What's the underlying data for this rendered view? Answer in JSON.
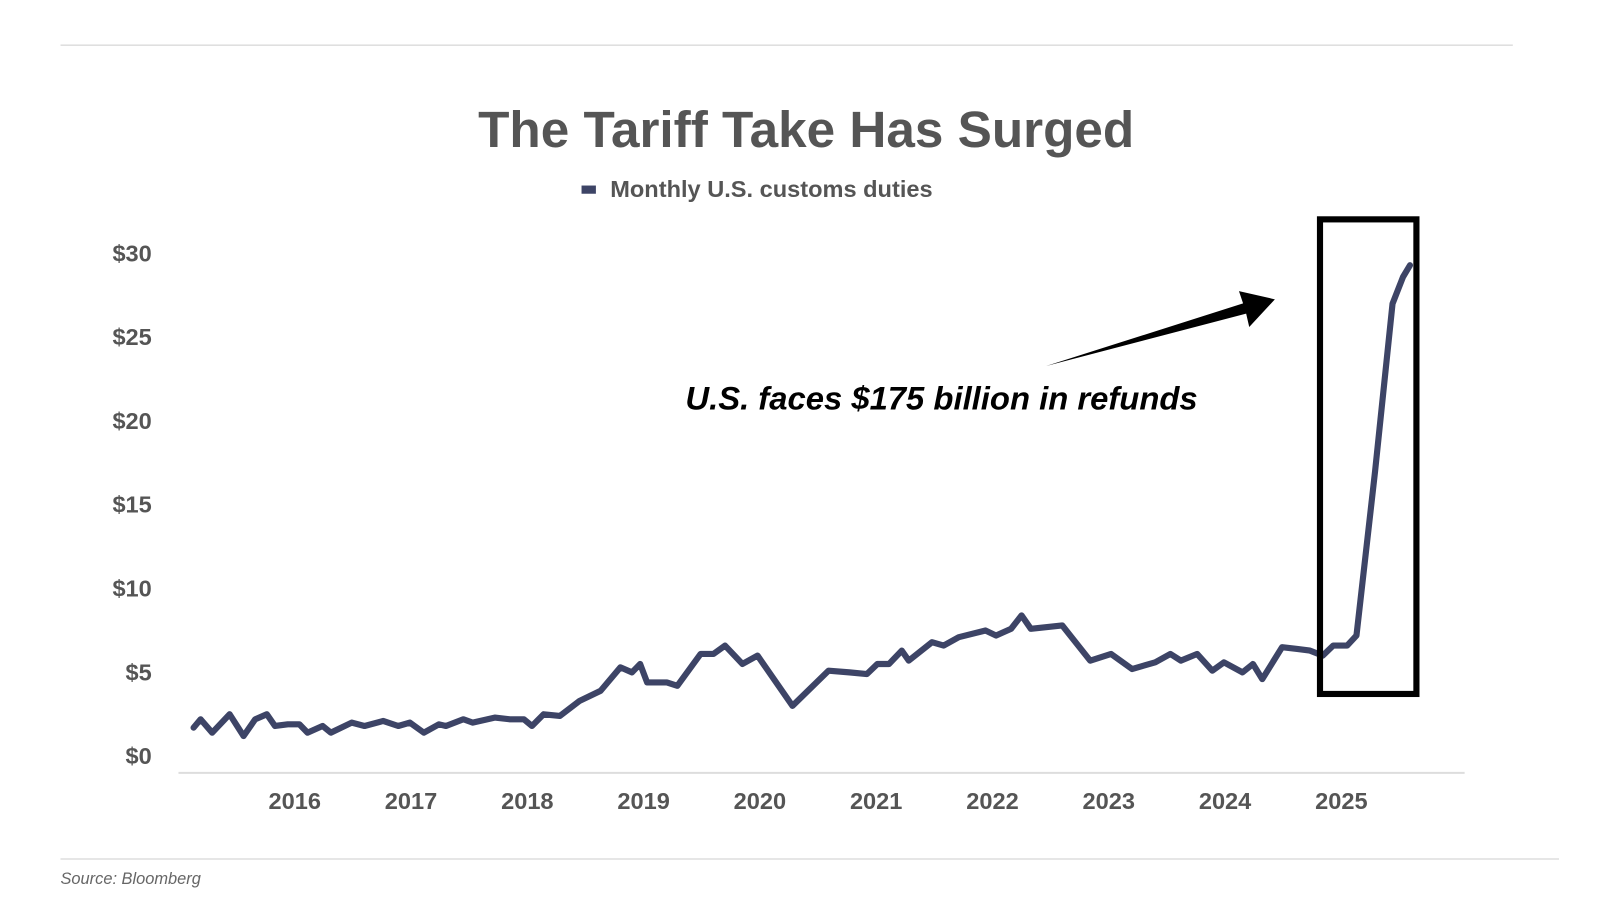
{
  "chart_data": {
    "type": "line",
    "title": "The Tariff Take Has Surged",
    "annotation": "U.S. faces $175 billion in refunds",
    "source": "Source: Bloomberg",
    "xlim": [
      2015,
      2026.06
    ],
    "xticks": [
      2016,
      2017,
      2018,
      2019,
      2020,
      2021,
      2022,
      2023,
      2024,
      2025
    ],
    "ylim": [
      -0.9,
      31.1
    ],
    "yticks": [
      {
        "value": 0,
        "label": "$0"
      },
      {
        "value": 5,
        "label": "$5"
      },
      {
        "value": 10,
        "label": "$10"
      },
      {
        "value": 15,
        "label": "$15"
      },
      {
        "value": 20,
        "label": "$20"
      },
      {
        "value": 25,
        "label": "$25"
      },
      {
        "value": 30,
        "label": "$30"
      }
    ],
    "grid": false,
    "x": [
      2015.13,
      2015.19,
      2015.29,
      2015.44,
      2015.56,
      2015.66,
      2015.76,
      2015.83,
      2015.94,
      2016.04,
      2016.11,
      2016.24,
      2016.31,
      2016.49,
      2016.6,
      2016.76,
      2016.89,
      2016.99,
      2017.11,
      2017.24,
      2017.3,
      2017.45,
      2017.53,
      2017.72,
      2017.85,
      2017.97,
      2018.04,
      2018.14,
      2018.28,
      2018.45,
      2018.63,
      2018.8,
      2018.9,
      2018.97,
      2019.03,
      2019.2,
      2019.29,
      2019.49,
      2019.6,
      2019.7,
      2019.85,
      2019.98,
      2020.28,
      2020.59,
      2020.77,
      2020.92,
      2021.01,
      2021.11,
      2021.22,
      2021.28,
      2021.48,
      2021.58,
      2021.71,
      2021.94,
      2022.03,
      2022.16,
      2022.25,
      2022.33,
      2022.6,
      2022.84,
      2023.02,
      2023.2,
      2023.4,
      2023.53,
      2023.62,
      2023.76,
      2023.89,
      2023.99,
      2024.15,
      2024.24,
      2024.32,
      2024.49,
      2024.62,
      2024.73,
      2024.84,
      2024.93,
      2025.05,
      2025.13,
      2025.29,
      2025.44,
      2025.53,
      2025.59
    ],
    "series": [
      {
        "name": "Monthly U.S. customs duties",
        "color": "#3d4466",
        "values": [
          1.8,
          2.3,
          1.5,
          2.6,
          1.3,
          2.3,
          2.6,
          1.9,
          2.0,
          2.0,
          1.5,
          1.9,
          1.5,
          2.1,
          1.9,
          2.2,
          1.9,
          2.1,
          1.5,
          2.0,
          1.9,
          2.3,
          2.1,
          2.4,
          2.3,
          2.3,
          1.9,
          2.6,
          2.5,
          3.4,
          4.0,
          5.4,
          5.1,
          5.6,
          4.5,
          4.5,
          4.3,
          6.2,
          6.2,
          6.7,
          5.6,
          6.1,
          3.1,
          5.2,
          5.1,
          5.0,
          5.6,
          5.6,
          6.4,
          5.8,
          6.9,
          6.7,
          7.2,
          7.6,
          7.3,
          7.7,
          8.5,
          7.7,
          7.9,
          5.8,
          6.2,
          5.3,
          5.7,
          6.2,
          5.8,
          6.2,
          5.2,
          5.7,
          5.1,
          5.6,
          4.7,
          6.6,
          6.5,
          6.4,
          6.1,
          6.7,
          6.7,
          7.3,
          17.1,
          27.1,
          28.7,
          29.4
        ]
      }
    ]
  }
}
